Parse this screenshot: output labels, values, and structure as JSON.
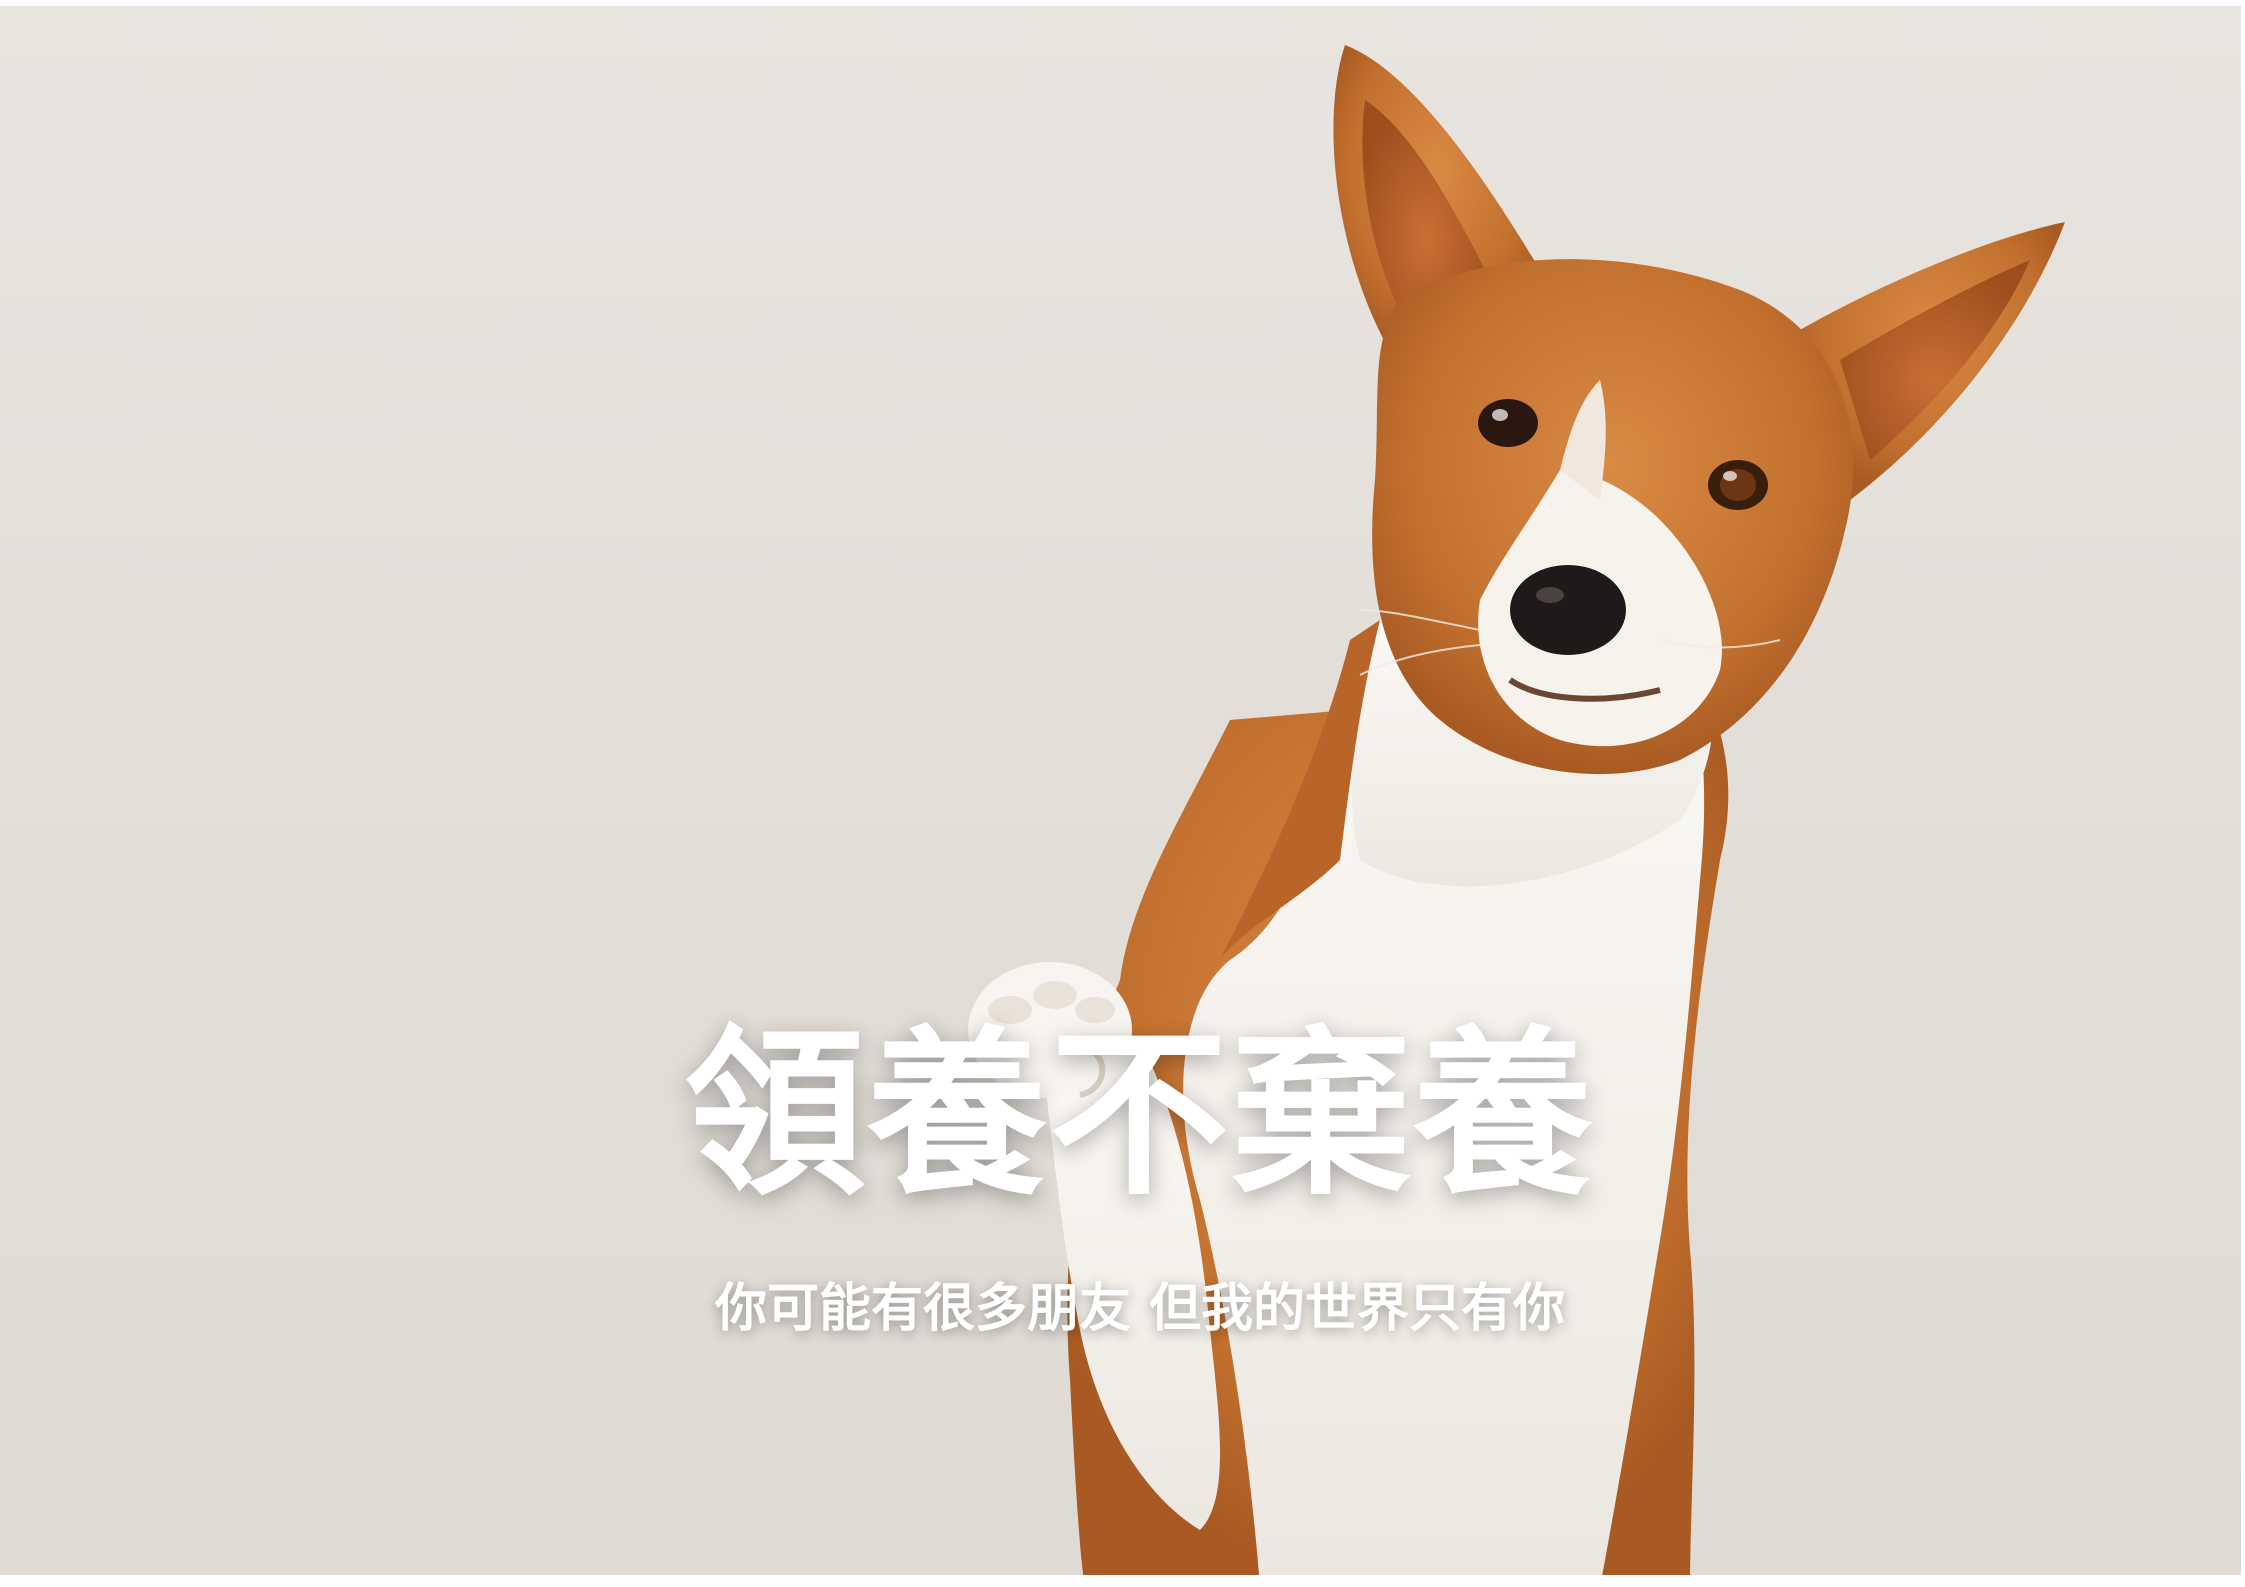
{
  "poster": {
    "headline": "領養不棄養",
    "subline": "你可能有很多朋友 但我的世界只有你"
  },
  "photo": {
    "subject": "basenji dog raising paw",
    "icon": "dog-illustration",
    "background_color": "#e3ded8",
    "fur_color": "#c8783a",
    "white_fur_color": "#f6f3ee"
  }
}
